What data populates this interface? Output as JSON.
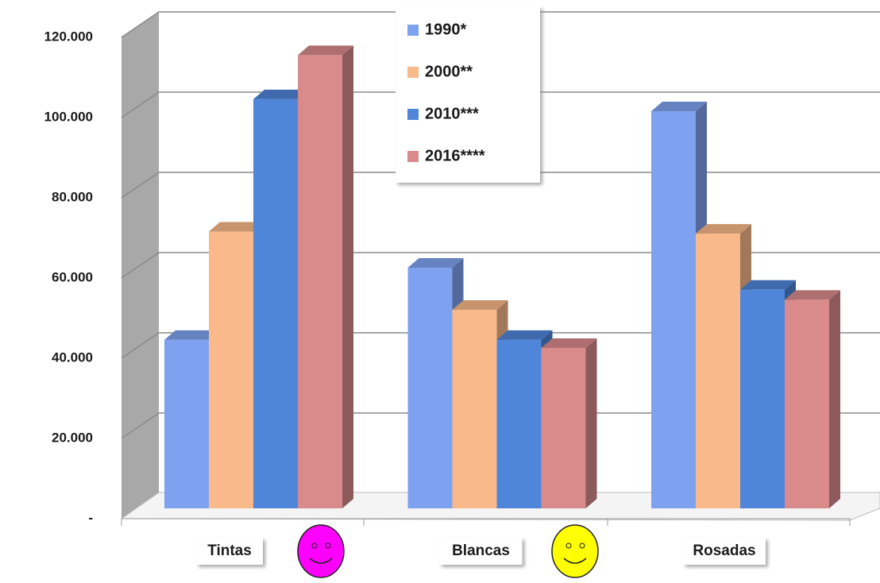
{
  "chart_data": {
    "type": "bar3d",
    "categories": [
      "Tintas",
      "Blancas",
      "Rosadas"
    ],
    "series": [
      {
        "name": "1990*",
        "color": "#7fa2f0",
        "values": [
          42000,
          60000,
          99000
        ]
      },
      {
        "name": "2000**",
        "color": "#f9b98a",
        "values": [
          69000,
          49500,
          68500
        ]
      },
      {
        "name": "2010***",
        "color": "#4f86d9",
        "values": [
          102000,
          42000,
          54500
        ]
      },
      {
        "name": "2016****",
        "color": "#d98b8c",
        "values": [
          113000,
          40000,
          52000
        ]
      }
    ],
    "ylim": [
      0,
      120000
    ],
    "yticks": [
      {
        "value": 0,
        "label": "-"
      },
      {
        "value": 20000,
        "label": "20.000"
      },
      {
        "value": 40000,
        "label": "40.000"
      },
      {
        "value": 60000,
        "label": "60.000"
      },
      {
        "value": 80000,
        "label": "80.000"
      },
      {
        "value": 100000,
        "label": "100.000"
      },
      {
        "value": 120000,
        "label": "120.000"
      }
    ],
    "grid": true,
    "legend": "top"
  }
}
